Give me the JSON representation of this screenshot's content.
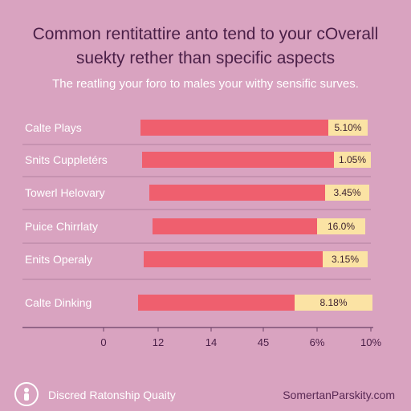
{
  "header": {
    "title_line1": "Common rentitattire anto tend to your cOverall",
    "title_line2": "suekty rether than specific aspects",
    "subtitle": "The reatling your foro to males your withy sensific surves."
  },
  "chart_data": {
    "type": "bar",
    "orientation": "horizontal",
    "categories": [
      "Calte Plays",
      "Snits Cuppletérs",
      "Towerl Helovary",
      "Puice Chirrlaty",
      "Enits Operaly",
      "Calte Dinking"
    ],
    "value_labels": [
      "5.10%",
      "1.05%",
      "3.45%",
      "16.0%",
      "3.15%",
      "8.18%"
    ],
    "x_ticks": [
      "0",
      "12",
      "14",
      "45",
      "6%",
      "10%"
    ],
    "colors": {
      "bar": "#ef5f6e",
      "label_box": "#fbe3a4",
      "axis": "#6b4266",
      "text": "#ffffff",
      "tick_text": "#4a1f47"
    }
  },
  "footer": {
    "icon": "person-icon",
    "left_text": "Discred Ratonship Quaity",
    "right_text": "SomertanParskity.com"
  }
}
